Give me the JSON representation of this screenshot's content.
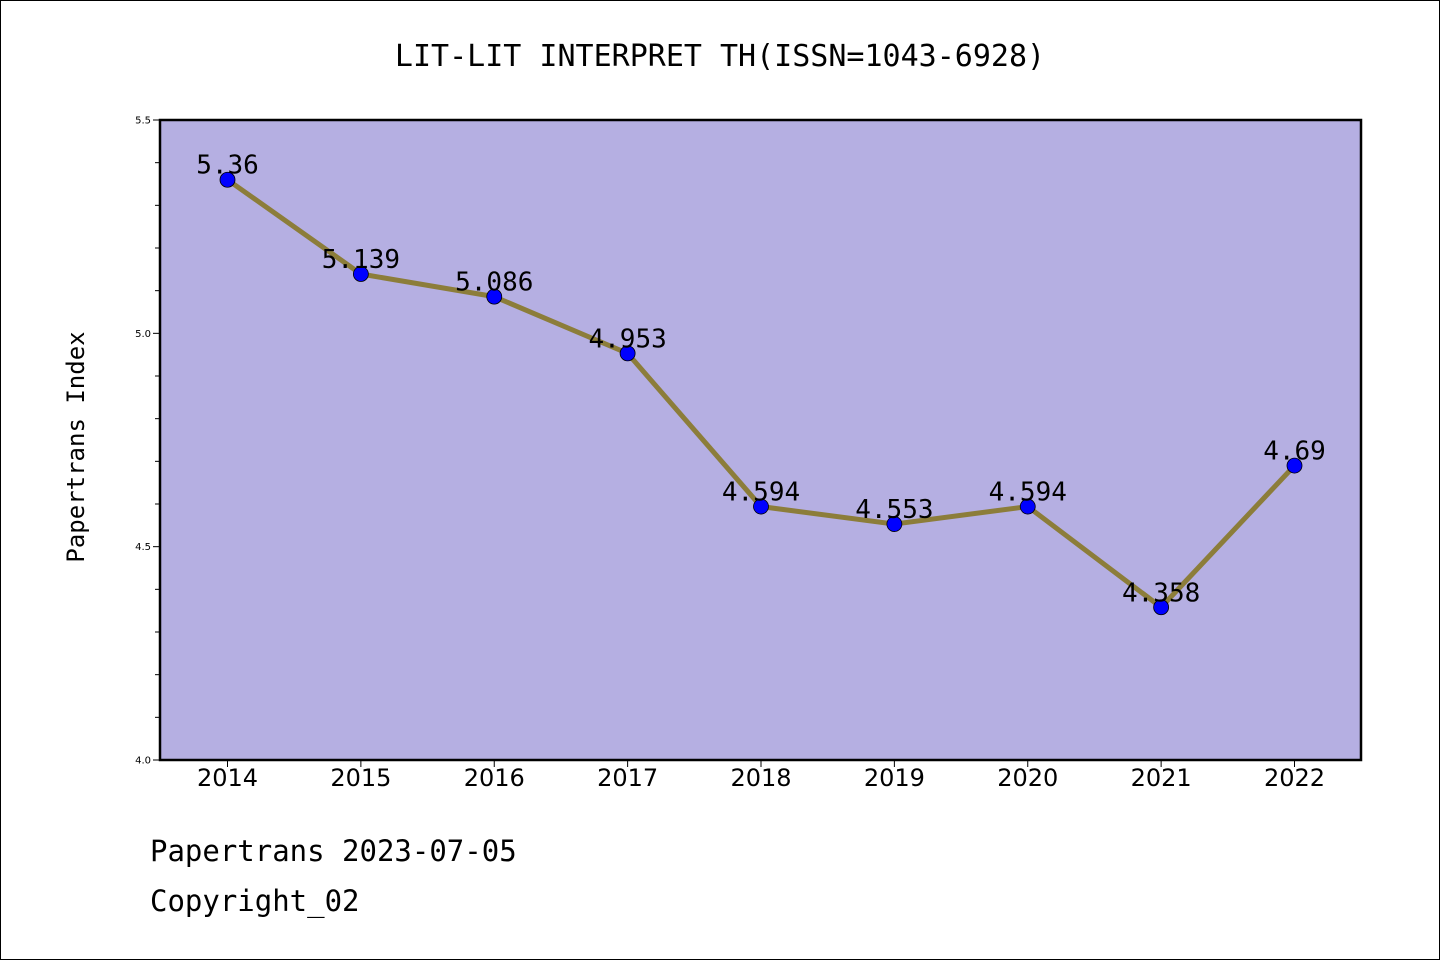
{
  "chart_data": {
    "type": "line",
    "title": "LIT-LIT INTERPRET TH(ISSN=1043-6928)",
    "xlabel": "",
    "ylabel": "Papertrans Index",
    "categories": [
      "2014",
      "2015",
      "2016",
      "2017",
      "2018",
      "2019",
      "2020",
      "2021",
      "2022"
    ],
    "values": [
      5.36,
      5.139,
      5.086,
      4.953,
      4.594,
      4.553,
      4.594,
      4.358,
      4.69
    ],
    "data_labels": [
      "5.36",
      "5.139",
      "5.086",
      "4.953",
      "4.594",
      "4.553",
      "4.594",
      "4.358",
      "4.69"
    ],
    "ylim": [
      4.0,
      5.5
    ],
    "yticks": [
      "4.0",
      "4.5",
      "5.0",
      "5.5"
    ],
    "grid": false,
    "legend": "none",
    "colors": {
      "plot_background": "#b5afe2",
      "line": "#8c7d3a",
      "marker": "#0000ff"
    }
  },
  "footer": {
    "line1": "Papertrans 2023-07-05",
    "line2": "Copyright_02"
  }
}
